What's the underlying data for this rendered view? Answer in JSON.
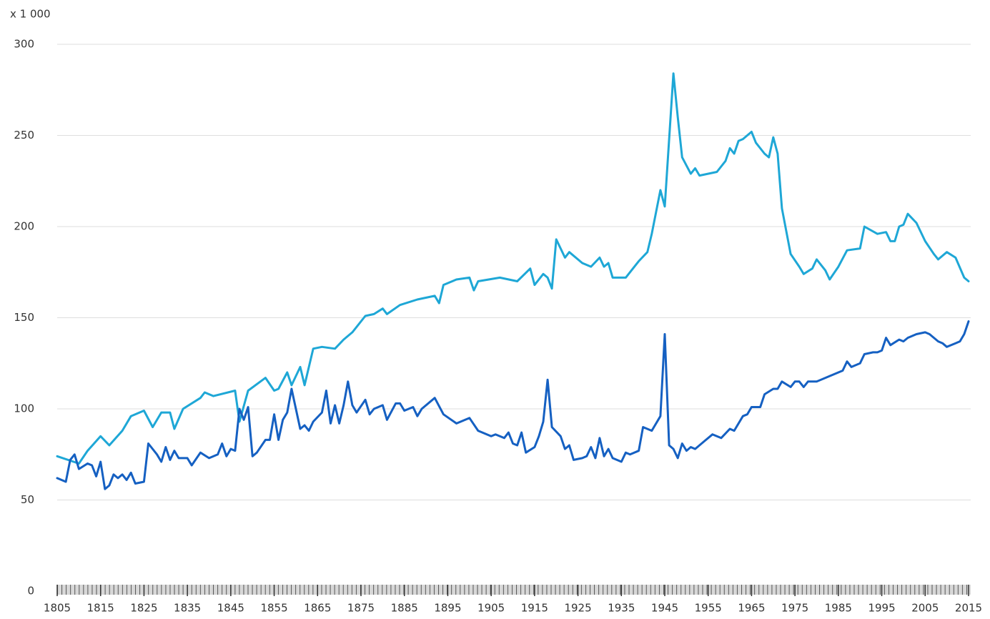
{
  "chart_data": {
    "type": "line",
    "subtitle": "x 1 000",
    "xlim": [
      1805,
      2015
    ],
    "xticks": [
      1805,
      1815,
      1825,
      1835,
      1845,
      1855,
      1865,
      1875,
      1885,
      1895,
      1905,
      1915,
      1925,
      1935,
      1945,
      1955,
      1965,
      1975,
      1985,
      1995,
      2005,
      2015
    ],
    "ylim": [
      0,
      300
    ],
    "yticks": [
      0,
      50,
      100,
      150,
      200,
      250,
      300
    ],
    "grid": true,
    "series": [
      {
        "color": "#1ea7d6",
        "x": [
          1805,
          1810,
          1812,
          1815,
          1817,
          1820,
          1822,
          1825,
          1827,
          1829,
          1831,
          1832,
          1834,
          1838,
          1839,
          1841,
          1846,
          1847,
          1849,
          1853,
          1855,
          1856,
          1858,
          1859,
          1861,
          1862,
          1864,
          1866,
          1869,
          1871,
          1873,
          1876,
          1878,
          1880,
          1881,
          1884,
          1888,
          1892,
          1893,
          1894,
          1897,
          1900,
          1901,
          1902,
          1907,
          1911,
          1914,
          1915,
          1917,
          1918,
          1919,
          1920,
          1922,
          1923,
          1926,
          1928,
          1930,
          1931,
          1932,
          1933,
          1936,
          1939,
          1941,
          1942,
          1944,
          1945,
          1947,
          1948,
          1949,
          1951,
          1952,
          1953,
          1957,
          1959,
          1960,
          1961,
          1962,
          1963,
          1965,
          1966,
          1968,
          1969,
          1970,
          1971,
          1972,
          1974,
          1976,
          1977,
          1979,
          1980,
          1982,
          1983,
          1985,
          1987,
          1990,
          1991,
          1994,
          1996,
          1997,
          1998,
          1999,
          2000,
          2001,
          2003,
          2005,
          2007,
          2008,
          2010,
          2012,
          2014,
          2015
        ],
        "values": [
          74,
          70,
          77,
          85,
          80,
          88,
          96,
          99,
          90,
          98,
          98,
          89,
          100,
          106,
          109,
          107,
          110,
          93,
          110,
          117,
          110,
          111,
          120,
          113,
          123,
          113,
          133,
          134,
          133,
          138,
          142,
          151,
          152,
          155,
          152,
          157,
          160,
          162,
          158,
          168,
          171,
          172,
          165,
          170,
          172,
          170,
          177,
          168,
          174,
          172,
          166,
          193,
          183,
          186,
          180,
          178,
          183,
          178,
          180,
          172,
          172,
          181,
          186,
          196,
          220,
          211,
          284,
          260,
          238,
          229,
          232,
          228,
          230,
          236,
          243,
          240,
          247,
          248,
          252,
          246,
          240,
          238,
          249,
          240,
          210,
          185,
          178,
          174,
          177,
          182,
          176,
          171,
          178,
          187,
          188,
          200,
          196,
          197,
          192,
          192,
          200,
          201,
          207,
          202,
          192,
          185,
          182,
          186,
          183,
          172,
          170
        ]
      },
      {
        "color": "#1560c2",
        "x": [
          1805,
          1807,
          1808,
          1809,
          1810,
          1812,
          1813,
          1814,
          1815,
          1816,
          1817,
          1818,
          1819,
          1820,
          1821,
          1822,
          1823,
          1825,
          1826,
          1828,
          1829,
          1830,
          1831,
          1832,
          1833,
          1835,
          1836,
          1838,
          1840,
          1842,
          1843,
          1844,
          1845,
          1846,
          1847,
          1848,
          1849,
          1850,
          1851,
          1853,
          1854,
          1855,
          1856,
          1857,
          1858,
          1859,
          1861,
          1862,
          1863,
          1864,
          1866,
          1867,
          1868,
          1869,
          1870,
          1871,
          1872,
          1873,
          1874,
          1876,
          1877,
          1878,
          1880,
          1881,
          1883,
          1884,
          1885,
          1887,
          1888,
          1889,
          1892,
          1894,
          1897,
          1900,
          1902,
          1905,
          1906,
          1908,
          1909,
          1910,
          1911,
          1912,
          1913,
          1915,
          1916,
          1917,
          1918,
          1919,
          1921,
          1922,
          1923,
          1924,
          1926,
          1927,
          1928,
          1929,
          1930,
          1931,
          1932,
          1933,
          1935,
          1936,
          1937,
          1939,
          1940,
          1942,
          1944,
          1945,
          1946,
          1947,
          1948,
          1949,
          1950,
          1951,
          1952,
          1954,
          1956,
          1958,
          1960,
          1961,
          1963,
          1964,
          1965,
          1967,
          1968,
          1970,
          1971,
          1972,
          1974,
          1975,
          1976,
          1977,
          1978,
          1980,
          1983,
          1986,
          1987,
          1988,
          1990,
          1991,
          1993,
          1994,
          1995,
          1996,
          1997,
          1999,
          2000,
          2001,
          2003,
          2005,
          2006,
          2008,
          2009,
          2010,
          2012,
          2013,
          2014,
          2015
        ],
        "values": [
          62,
          60,
          72,
          75,
          67,
          70,
          69,
          63,
          71,
          56,
          58,
          64,
          62,
          64,
          61,
          65,
          59,
          60,
          81,
          75,
          71,
          79,
          72,
          77,
          73,
          73,
          69,
          76,
          73,
          75,
          81,
          74,
          78,
          77,
          100,
          94,
          101,
          74,
          76,
          83,
          83,
          97,
          83,
          94,
          98,
          111,
          89,
          91,
          88,
          93,
          98,
          110,
          92,
          102,
          92,
          102,
          115,
          102,
          98,
          105,
          97,
          100,
          102,
          94,
          103,
          103,
          99,
          101,
          96,
          100,
          106,
          97,
          92,
          95,
          88,
          85,
          86,
          84,
          87,
          81,
          80,
          87,
          76,
          79,
          85,
          93,
          116,
          90,
          85,
          78,
          80,
          72,
          73,
          74,
          79,
          73,
          84,
          74,
          78,
          73,
          71,
          76,
          75,
          77,
          90,
          88,
          96,
          141,
          80,
          78,
          73,
          81,
          77,
          79,
          78,
          82,
          86,
          84,
          89,
          88,
          96,
          97,
          101,
          101,
          108,
          111,
          111,
          115,
          112,
          115,
          115,
          112,
          115,
          115,
          118,
          121,
          126,
          123,
          125,
          130,
          131,
          131,
          132,
          139,
          135,
          138,
          137,
          139,
          141,
          142,
          141,
          137,
          136,
          134,
          136,
          137,
          141,
          148
        ]
      }
    ]
  }
}
